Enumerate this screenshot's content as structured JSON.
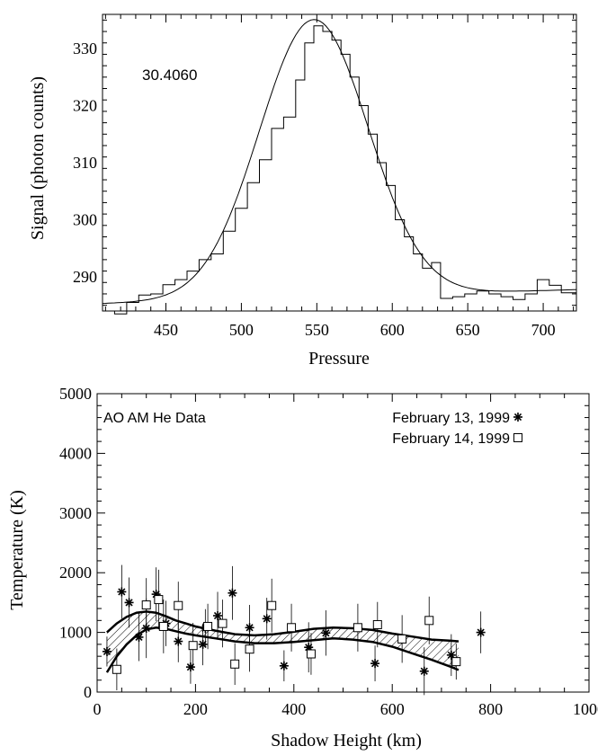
{
  "chart_data": [
    {
      "type": "line",
      "xlabel": "Pressure",
      "ylabel": "Signal (photon counts)",
      "annotation": "30.4060",
      "xlim": [
        408,
        722
      ],
      "ylim": [
        284,
        336
      ],
      "xticks": [
        450,
        500,
        550,
        600,
        650,
        700
      ],
      "yticks": [
        290,
        300,
        310,
        320,
        330
      ],
      "series": [
        {
          "style": "step",
          "x": [
            408,
            416,
            424,
            432,
            440,
            448,
            456,
            464,
            472,
            480,
            488,
            496,
            504,
            512,
            520,
            528,
            536,
            542,
            548,
            554,
            560,
            566,
            572,
            578,
            584,
            590,
            596,
            602,
            608,
            614,
            620,
            626,
            632,
            640,
            648,
            656,
            664,
            672,
            680,
            688,
            696,
            704,
            712,
            722
          ],
          "y": [
            284.0,
            283.5,
            285.5,
            286.8,
            287.0,
            288.6,
            289.5,
            291.0,
            293.0,
            294.0,
            298.0,
            302.0,
            306.5,
            310.5,
            316.0,
            318.0,
            324.5,
            331.0,
            334.0,
            333.0,
            331.5,
            329.0,
            325.0,
            320.0,
            315.0,
            310.0,
            306.0,
            300.0,
            297.0,
            294.0,
            291.5,
            292.5,
            286.2,
            286.5,
            287.0,
            287.5,
            287.0,
            286.5,
            286.0,
            287.0,
            289.5,
            288.5,
            287.2,
            287.0
          ]
        },
        {
          "style": "fit",
          "model": "gaussian",
          "baseline": 285.3,
          "amplitude": 48.7,
          "center": 548,
          "sigma": 36,
          "slope": 0.0078
        }
      ]
    },
    {
      "type": "scatter",
      "xlabel": "Shadow Height (km)",
      "ylabel": "Temperature (K)",
      "title": "AO AM He Data",
      "xlim": [
        0,
        1000
      ],
      "ylim": [
        0,
        5000
      ],
      "xticks": [
        0,
        200,
        400,
        600,
        800,
        1000
      ],
      "yticks": [
        0,
        1000,
        2000,
        3000,
        4000,
        5000
      ],
      "legend_placement": "top-right",
      "series": [
        {
          "name": "February 13, 1999",
          "marker": "asterisk",
          "points": [
            [
              20,
              680,
              250
            ],
            [
              50,
              1680,
              450
            ],
            [
              65,
              1500,
              420
            ],
            [
              85,
              920,
              400
            ],
            [
              100,
              1070,
              500
            ],
            [
              120,
              1640,
              450
            ],
            [
              140,
              1150,
              380
            ],
            [
              165,
              850,
              350
            ],
            [
              190,
              420,
              280
            ],
            [
              215,
              800,
              350
            ],
            [
              220,
              1070,
              320
            ],
            [
              245,
              1280,
              400
            ],
            [
              275,
              1660,
              450
            ],
            [
              310,
              1080,
              380
            ],
            [
              345,
              1230,
              350
            ],
            [
              380,
              440,
              260
            ],
            [
              430,
              750,
              420
            ],
            [
              465,
              990,
              380
            ],
            [
              565,
              480,
              300
            ],
            [
              665,
              350,
              400
            ],
            [
              720,
              620,
              350
            ],
            [
              780,
              1000,
              350
            ]
          ]
        },
        {
          "name": "February 14, 1999",
          "marker": "square",
          "points": [
            [
              40,
              380,
              350
            ],
            [
              100,
              1460,
              450
            ],
            [
              125,
              1550,
              500
            ],
            [
              135,
              1100,
              450
            ],
            [
              165,
              1450,
              400
            ],
            [
              195,
              780,
              380
            ],
            [
              225,
              1100,
              380
            ],
            [
              255,
              1150,
              400
            ],
            [
              280,
              470,
              350
            ],
            [
              310,
              720,
              380
            ],
            [
              355,
              1450,
              450
            ],
            [
              395,
              1080,
              400
            ],
            [
              435,
              640,
              350
            ],
            [
              530,
              1080,
              400
            ],
            [
              570,
              1130,
              380
            ],
            [
              620,
              890,
              400
            ],
            [
              675,
              1200,
              400
            ],
            [
              730,
              510,
              300
            ]
          ]
        },
        {
          "name": "model band",
          "style": "hatched-band",
          "x": [
            20,
            40,
            60,
            80,
            100,
            120,
            140,
            160,
            180,
            200,
            240,
            280,
            320,
            360,
            400,
            440,
            480,
            520,
            560,
            600,
            640,
            680,
            720,
            735
          ],
          "upper": [
            1000,
            1150,
            1260,
            1330,
            1350,
            1330,
            1270,
            1200,
            1150,
            1100,
            1030,
            970,
            950,
            970,
            1010,
            1060,
            1080,
            1070,
            1040,
            980,
            930,
            880,
            860,
            850
          ],
          "lower": [
            330,
            600,
            800,
            950,
            1050,
            1080,
            1060,
            1020,
            980,
            950,
            900,
            850,
            820,
            820,
            840,
            870,
            900,
            880,
            840,
            760,
            650,
            540,
            420,
            370
          ]
        }
      ]
    }
  ]
}
